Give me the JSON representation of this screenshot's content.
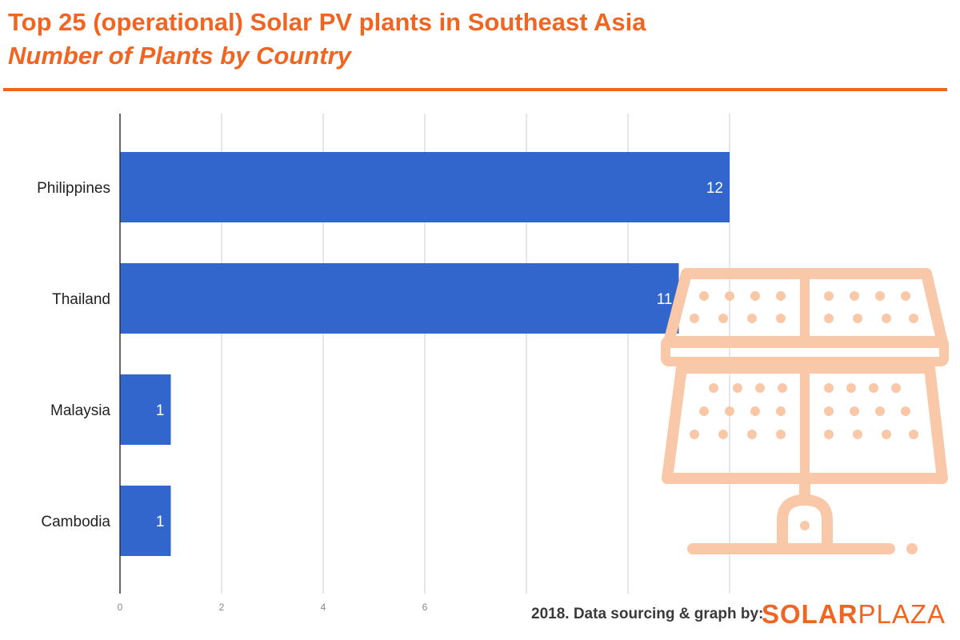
{
  "header": {
    "title": "Top 25 (operational) Solar PV plants in Southeast Asia",
    "subtitle": "Number of Plants by Country"
  },
  "footer": {
    "credit": "2018. Data sourcing & graph by:",
    "brand_bold": "SOLAR",
    "brand_light": "PLAZA"
  },
  "colors": {
    "accent": "#f06522",
    "bar": "#3366cc",
    "watermark": "#f8c8a8",
    "grid": "#cccccc"
  },
  "icons": {
    "watermark": "solar-panel-icon",
    "brand_mark": "sun-icon"
  },
  "chart_data": {
    "type": "bar",
    "orientation": "horizontal",
    "categories": [
      "Philippines",
      "Thailand",
      "Malaysia",
      "Cambodia"
    ],
    "values": [
      12,
      11,
      1,
      1
    ],
    "data_labels": [
      "12",
      "11",
      "1",
      "1"
    ],
    "x_ticks": [
      "0",
      "2",
      "4",
      "6"
    ],
    "xlim": [
      0,
      12
    ],
    "grid": true,
    "legend": "none"
  }
}
